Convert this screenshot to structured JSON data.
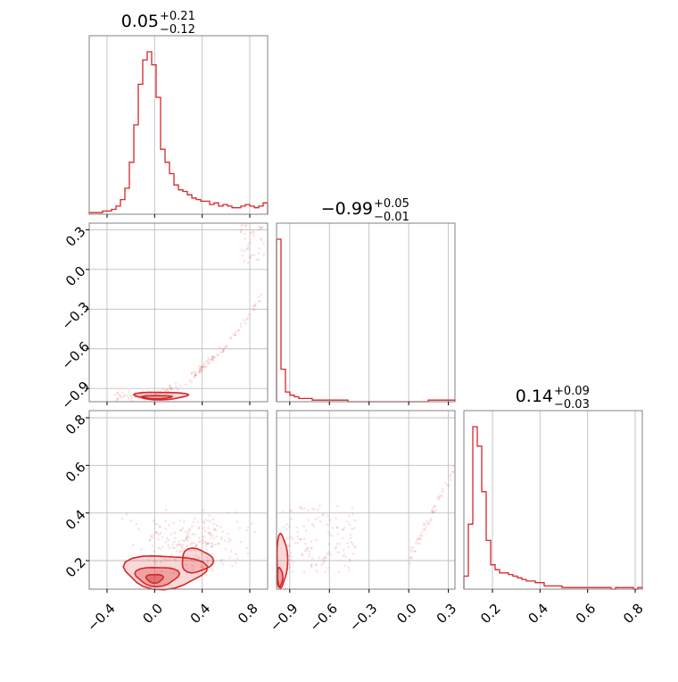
{
  "chart_data": {
    "type": "corner",
    "color": "#d62728",
    "titles": [
      {
        "main": "0.05",
        "sup": "+0.21",
        "sub": "−0.12"
      },
      {
        "main": "−0.99",
        "sup": "+0.05",
        "sub": "−0.01"
      },
      {
        "main": "0.14",
        "sup": "+0.09",
        "sub": "−0.03"
      }
    ],
    "axes": [
      {
        "range": [
          -0.55,
          0.95
        ],
        "ticks": [
          -0.4,
          0.0,
          0.4,
          0.8
        ],
        "tick_labels": [
          "−0.4",
          "0.0",
          "0.4",
          "0.8"
        ]
      },
      {
        "range": [
          -1.0,
          0.35
        ],
        "ticks": [
          -0.9,
          -0.6,
          -0.3,
          0.0,
          0.3
        ],
        "tick_labels": [
          "−0.9",
          "−0.6",
          "−0.3",
          "0.0",
          "0.3"
        ]
      },
      {
        "range": [
          0.08,
          0.83
        ],
        "ticks": [
          0.2,
          0.4,
          0.6,
          0.8
        ],
        "tick_labels": [
          "0.2",
          "0.4",
          "0.6",
          "0.8"
        ]
      }
    ],
    "hist1": {
      "range": [
        -0.55,
        0.95
      ],
      "counts": [
        1,
        1,
        1,
        2,
        2,
        3,
        5,
        9,
        16,
        32,
        55,
        80,
        95,
        100,
        92,
        72,
        40,
        32,
        25,
        18,
        15,
        14,
        12,
        10,
        9,
        8,
        8,
        6,
        7,
        5,
        6,
        5,
        4,
        4,
        5,
        6,
        5,
        4,
        5,
        7
      ]
    },
    "hist2": {
      "range": [
        -1.0,
        0.35
      ],
      "counts": [
        100,
        20,
        6,
        4,
        3,
        2,
        2,
        2,
        1,
        1,
        1,
        1,
        1,
        1,
        1,
        1,
        0,
        0,
        0,
        0,
        0,
        0,
        0,
        0,
        0,
        0,
        0,
        0,
        0,
        0,
        0,
        0,
        0,
        0,
        1,
        1,
        1,
        1,
        1,
        1
      ]
    },
    "hist3": {
      "range": [
        0.08,
        0.83
      ],
      "counts": [
        8,
        40,
        100,
        88,
        60,
        30,
        15,
        12,
        10,
        10,
        9,
        8,
        7,
        6,
        5,
        5,
        4,
        4,
        2,
        2,
        2,
        2,
        1,
        1,
        1,
        1,
        1,
        1,
        1,
        1,
        1,
        1,
        1,
        0,
        1,
        1,
        1,
        1,
        0,
        1
      ]
    }
  }
}
